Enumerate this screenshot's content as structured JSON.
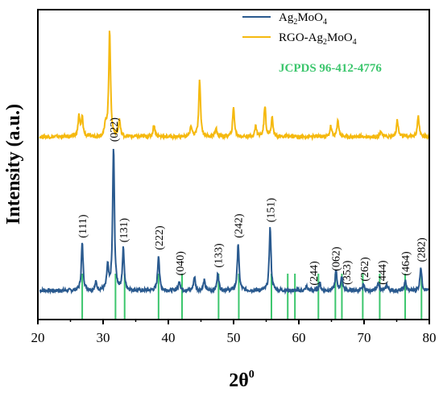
{
  "chart_data": {
    "type": "line",
    "xlabel": "2θ",
    "xlabel_sup": "0",
    "ylabel": "Intensity (a.u.)",
    "xlim": [
      20,
      80
    ],
    "x_ticks": [
      20,
      30,
      40,
      50,
      60,
      70,
      80
    ],
    "grid": false,
    "legend_position": "top-right",
    "series": [
      {
        "name": "Ag2MoO4",
        "name_base": "Ag",
        "name_sub1": "2",
        "name_mid": "MoO",
        "name_sub2": "4",
        "color": "#2a5a8f",
        "baseline": 0.02,
        "peaks": [
          [
            26.8,
            0.24
          ],
          [
            28.9,
            0.04
          ],
          [
            30.7,
            0.12
          ],
          [
            31.6,
            0.72
          ],
          [
            33.1,
            0.21
          ],
          [
            38.5,
            0.18
          ],
          [
            41.7,
            0.05
          ],
          [
            44.0,
            0.07
          ],
          [
            45.5,
            0.05
          ],
          [
            47.6,
            0.09
          ],
          [
            50.7,
            0.24
          ],
          [
            55.6,
            0.32
          ],
          [
            61.2,
            0.02
          ],
          [
            63.2,
            0.04
          ],
          [
            65.7,
            0.1
          ],
          [
            66.6,
            0.07
          ],
          [
            69.9,
            0.03
          ],
          [
            72.2,
            0.04
          ],
          [
            73.5,
            0.03
          ],
          [
            76.3,
            0.05
          ],
          [
            78.7,
            0.12
          ]
        ]
      },
      {
        "name": "RGO-Ag2MoO4",
        "name_base": "RGO-Ag",
        "name_sub1": "2",
        "name_mid": "MoO",
        "name_sub2": "4",
        "color": "#f5b90f",
        "baseline": 0.02,
        "peaks": [
          [
            26.3,
            0.1
          ],
          [
            26.8,
            0.09
          ],
          [
            30.4,
            0.06
          ],
          [
            31.0,
            0.52
          ],
          [
            32.5,
            0.08
          ],
          [
            37.8,
            0.06
          ],
          [
            43.5,
            0.05
          ],
          [
            44.8,
            0.27
          ],
          [
            47.3,
            0.04
          ],
          [
            50.0,
            0.14
          ],
          [
            53.4,
            0.05
          ],
          [
            54.8,
            0.15
          ],
          [
            55.9,
            0.09
          ],
          [
            64.9,
            0.05
          ],
          [
            66.0,
            0.08
          ],
          [
            72.6,
            0.03
          ],
          [
            75.1,
            0.08
          ],
          [
            78.3,
            0.1
          ]
        ]
      }
    ],
    "reference": {
      "name": "JCPDS 96-412-4776",
      "color": "#3cc66d",
      "positions": [
        26.8,
        31.9,
        33.3,
        38.5,
        42.1,
        47.7,
        50.8,
        55.8,
        58.3,
        59.4,
        63.0,
        65.6,
        66.6,
        69.8,
        72.4,
        76.3,
        78.8
      ]
    },
    "peak_labels": [
      {
        "text": "(111)",
        "x": 26.8
      },
      {
        "text": "(022)",
        "x": 31.6
      },
      {
        "text": "(131)",
        "x": 33.1
      },
      {
        "text": "(222)",
        "x": 38.5
      },
      {
        "text": "(040)",
        "x": 41.7
      },
      {
        "text": "(133)",
        "x": 47.6
      },
      {
        "text": "(242)",
        "x": 50.7
      },
      {
        "text": "(151)",
        "x": 55.6
      },
      {
        "text": "(244)",
        "x": 62.2
      },
      {
        "text": "(062)",
        "x": 65.6
      },
      {
        "text": "(353)",
        "x": 67.3
      },
      {
        "text": "(262)",
        "x": 70.0
      },
      {
        "text": "(444)",
        "x": 72.7
      },
      {
        "text": "(464)",
        "x": 76.3
      },
      {
        "text": "(282)",
        "x": 78.7
      }
    ]
  }
}
